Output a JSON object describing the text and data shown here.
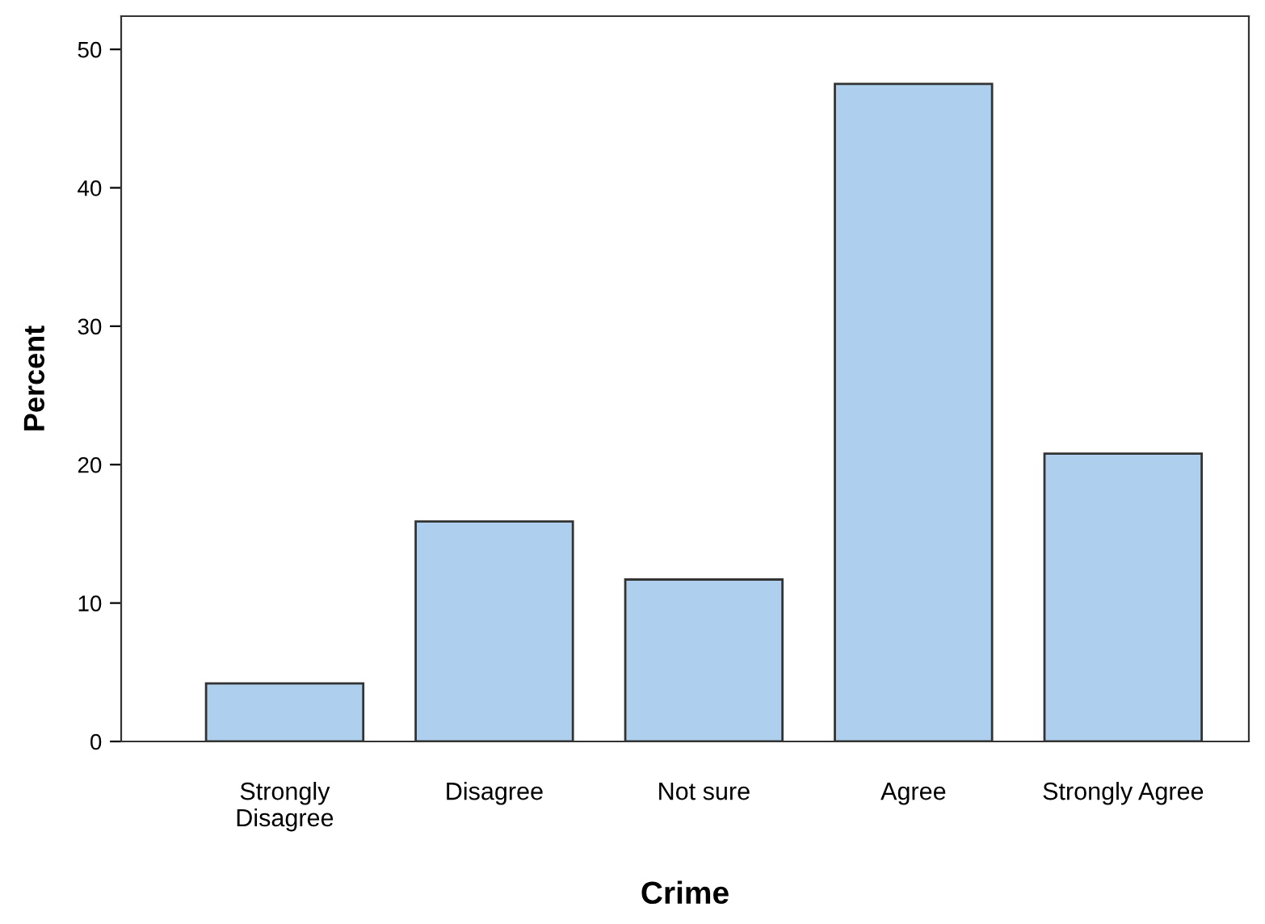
{
  "chart_data": {
    "type": "bar",
    "xlabel": "Crime",
    "ylabel": "Percent",
    "categories": [
      "Strongly\nDisagree",
      "Disagree",
      "Not sure",
      "Agree",
      "Strongly Agree"
    ],
    "values": [
      4.2,
      15.9,
      11.7,
      47.5,
      20.8
    ],
    "color": "#aed0ee",
    "ylim": [
      0,
      52.4
    ],
    "yticks": [
      0,
      10,
      20,
      30,
      40,
      50
    ],
    "grid": false,
    "legend": false
  }
}
